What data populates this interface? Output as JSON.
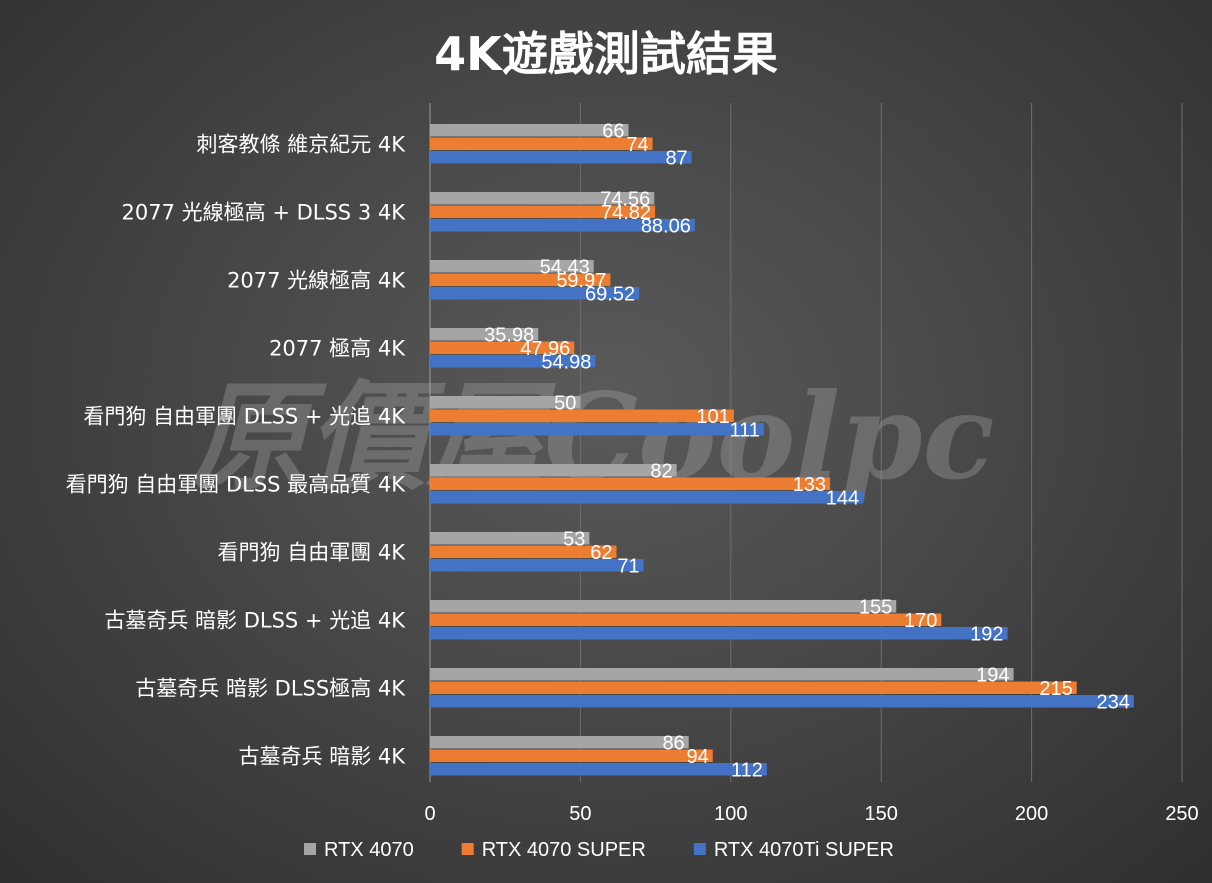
{
  "watermark": "原價屋Coolpc",
  "chart_data": {
    "type": "bar",
    "orientation": "horizontal",
    "title": "4K遊戲測試結果",
    "xlabel": "",
    "ylabel": "",
    "xlim": [
      0,
      250
    ],
    "xticks": [
      0,
      50,
      100,
      150,
      200,
      250
    ],
    "grid": true,
    "legend_position": "bottom",
    "categories": [
      "刺客教條 維京紀元 4K",
      "2077 光線極高 + DLSS 3 4K",
      "2077 光線極高 4K",
      "2077 極高 4K",
      "看門狗 自由軍團 DLSS + 光追 4K",
      "看門狗 自由軍團 DLSS 最高品質 4K",
      "看門狗 自由軍團 4K",
      "古墓奇兵 暗影 DLSS + 光追 4K",
      "古墓奇兵 暗影 DLSS極高 4K",
      "古墓奇兵 暗影 4K"
    ],
    "series": [
      {
        "name": "RTX 4070",
        "color": "#a5a5a5",
        "values": [
          66,
          74.56,
          54.43,
          35.98,
          50,
          82,
          53,
          155,
          194,
          86
        ],
        "labels": [
          "66",
          "74.56",
          "54.43",
          "35.98",
          "50",
          "82",
          "53",
          "155",
          "194",
          "86"
        ]
      },
      {
        "name": "RTX 4070 SUPER",
        "color": "#ed7d31",
        "values": [
          74,
          74.82,
          59.97,
          47.96,
          101,
          133,
          62,
          170,
          215,
          94
        ],
        "labels": [
          "74",
          "74.82",
          "59.97",
          "47.96",
          "101",
          "133",
          "62",
          "170",
          "215",
          "94"
        ]
      },
      {
        "name": "RTX 4070Ti SUPER",
        "color": "#4472c4",
        "values": [
          87,
          88.06,
          69.52,
          54.98,
          111,
          144,
          71,
          192,
          234,
          112
        ],
        "labels": [
          "87",
          "88.06",
          "69.52",
          "54.98",
          "111",
          "144",
          "71",
          "192",
          "234",
          "112"
        ]
      }
    ]
  }
}
